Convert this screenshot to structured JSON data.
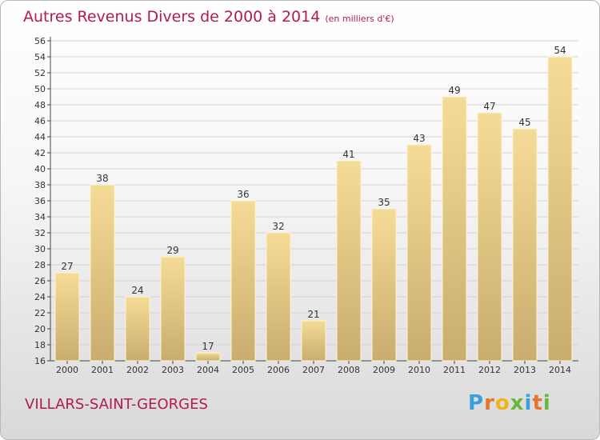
{
  "chart_data": {
    "type": "bar",
    "title": "Autres Revenus Divers de 2000 à 2014",
    "subtitle": "(en milliers d'€)",
    "categories": [
      "2000",
      "2001",
      "2002",
      "2003",
      "2004",
      "2005",
      "2006",
      "2007",
      "2008",
      "2009",
      "2010",
      "2011",
      "2012",
      "2013",
      "2014"
    ],
    "values": [
      27,
      38,
      24,
      29,
      17,
      36,
      32,
      21,
      41,
      35,
      43,
      49,
      47,
      45,
      54
    ],
    "ylim": [
      16,
      56
    ],
    "yticks": [
      16,
      18,
      20,
      22,
      24,
      26,
      28,
      30,
      32,
      34,
      36,
      38,
      40,
      42,
      44,
      46,
      48,
      50,
      52,
      54,
      56
    ],
    "grid": true,
    "colors": {
      "bar_light": "#f5dc96",
      "bar_dark": "#c8ad6e",
      "title": "#b31a52"
    }
  },
  "footer": {
    "place_name": "VILLARS-SAINT-GEORGES",
    "logo_letters": [
      "P",
      "r",
      "o",
      "x",
      "i",
      "t",
      "i"
    ],
    "logo_colors": [
      "#3aa0dc",
      "#e8732a",
      "#f0b418",
      "#6bb63c",
      "#3aa0dc",
      "#e8732a",
      "#6bb63c"
    ]
  }
}
